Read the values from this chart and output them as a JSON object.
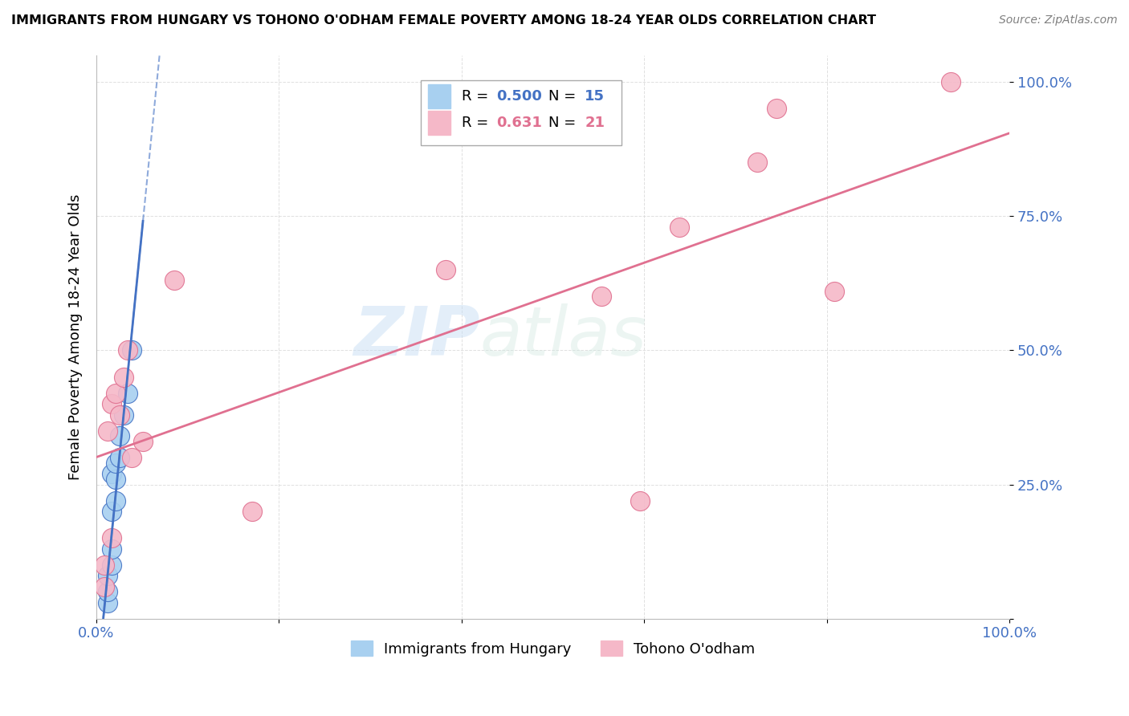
{
  "title": "IMMIGRANTS FROM HUNGARY VS TOHONO O'ODHAM FEMALE POVERTY AMONG 18-24 YEAR OLDS CORRELATION CHART",
  "source": "Source: ZipAtlas.com",
  "ylabel": "Female Poverty Among 18-24 Year Olds",
  "legend_R1": "0.500",
  "legend_N1": "15",
  "legend_R2": "0.631",
  "legend_N2": "21",
  "series1_color": "#A8D0F0",
  "series2_color": "#F5B8C8",
  "trendline1_color": "#4472C4",
  "trendline2_color": "#E07090",
  "series1_name": "Immigrants from Hungary",
  "series2_name": "Tohono O'odham",
  "watermark_zip": "ZIP",
  "watermark_atlas": "atlas",
  "tick_color": "#4472C4",
  "hungary_x": [
    0.003,
    0.003,
    0.003,
    0.004,
    0.004,
    0.004,
    0.004,
    0.005,
    0.005,
    0.005,
    0.006,
    0.006,
    0.007,
    0.008,
    0.009
  ],
  "hungary_y": [
    0.03,
    0.05,
    0.08,
    0.1,
    0.13,
    0.2,
    0.27,
    0.22,
    0.26,
    0.29,
    0.3,
    0.34,
    0.38,
    0.42,
    0.5
  ],
  "tohono_x": [
    0.002,
    0.002,
    0.003,
    0.004,
    0.004,
    0.005,
    0.006,
    0.007,
    0.008,
    0.009,
    0.012,
    0.02,
    0.04,
    0.09,
    0.13,
    0.14,
    0.15,
    0.17,
    0.175,
    0.19,
    0.22
  ],
  "tohono_y": [
    0.06,
    0.1,
    0.35,
    0.15,
    0.4,
    0.42,
    0.38,
    0.45,
    0.5,
    0.3,
    0.33,
    0.63,
    0.2,
    0.65,
    0.6,
    0.22,
    0.73,
    0.85,
    0.95,
    0.61,
    1.0
  ],
  "xlim": [
    0.0,
    0.235
  ],
  "ylim": [
    0.0,
    1.05
  ],
  "xtick_vals": [
    0.0,
    0.235
  ],
  "ytick_vals": [
    0.0,
    0.25,
    0.5,
    0.75,
    1.0
  ]
}
